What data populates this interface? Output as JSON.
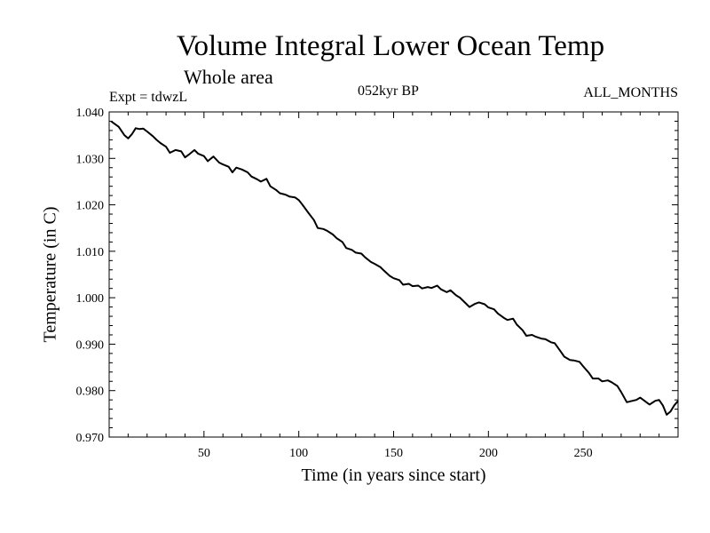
{
  "chart_data": {
    "type": "line",
    "title": "Volume Integral Lower Ocean Temp",
    "subtitle": "Whole area",
    "annotations": {
      "left": "Expt = tdwzL",
      "center": "052kyr BP",
      "right": "ALL_MONTHS"
    },
    "xlabel": "Time (in years since start)",
    "ylabel": "Temperature (in C)",
    "xlim": [
      0,
      300
    ],
    "ylim": [
      0.97,
      1.04
    ],
    "xticks": [
      50,
      100,
      150,
      200,
      250
    ],
    "xtick_labels": [
      "50",
      "100",
      "150",
      "200",
      "250"
    ],
    "yticks": [
      0.97,
      0.98,
      0.99,
      1.0,
      1.01,
      1.02,
      1.03,
      1.04
    ],
    "ytick_labels": [
      "0.970",
      "0.980",
      "0.990",
      "1.000",
      "1.010",
      "1.020",
      "1.030",
      "1.040"
    ],
    "grid": false,
    "line_color": "#000000",
    "series": [
      {
        "x": [
          1,
          5,
          8,
          10,
          12,
          14,
          16,
          18,
          20,
          23,
          25,
          27,
          30,
          32,
          35,
          38,
          40,
          42,
          45,
          47,
          50,
          52,
          55,
          58,
          60,
          63,
          65,
          67,
          70,
          73,
          75,
          78,
          80,
          83,
          85,
          88,
          90,
          93,
          95,
          98,
          100,
          102,
          105,
          108,
          110,
          113,
          115,
          118,
          120,
          123,
          125,
          128,
          130,
          133,
          135,
          138,
          140,
          143,
          145,
          148,
          150,
          153,
          155,
          158,
          160,
          163,
          165,
          168,
          170,
          173,
          175,
          178,
          180,
          183,
          185,
          188,
          190,
          193,
          195,
          198,
          200,
          203,
          205,
          208,
          210,
          213,
          215,
          218,
          220,
          223,
          225,
          228,
          230,
          233,
          235,
          238,
          240,
          243,
          245,
          248,
          250,
          253,
          255,
          258,
          260,
          263,
          265,
          268,
          270,
          273,
          275,
          278,
          280,
          283,
          285,
          288,
          290,
          292,
          294,
          296,
          298,
          300
        ],
        "y": [
          1.038,
          1.0368,
          1.035,
          1.0343,
          1.0352,
          1.0365,
          1.0363,
          1.0364,
          1.0358,
          1.0348,
          1.034,
          1.0333,
          1.0325,
          1.0312,
          1.0318,
          1.0315,
          1.0302,
          1.0308,
          1.0318,
          1.031,
          1.0305,
          1.0294,
          1.0304,
          1.0291,
          1.0287,
          1.0282,
          1.027,
          1.028,
          1.0276,
          1.027,
          1.0261,
          1.0255,
          1.025,
          1.0256,
          1.024,
          1.0232,
          1.0225,
          1.0222,
          1.0218,
          1.0216,
          1.021,
          1.02,
          1.0183,
          1.0167,
          1.015,
          1.0148,
          1.0144,
          1.0136,
          1.0128,
          1.012,
          1.0107,
          1.0103,
          1.0097,
          1.0095,
          1.0087,
          1.0077,
          1.0073,
          1.0066,
          1.0058,
          1.0047,
          1.0042,
          1.0038,
          1.0028,
          1.003,
          1.0025,
          1.0026,
          1.002,
          1.0023,
          1.0021,
          1.0026,
          1.0018,
          1.0012,
          1.0016,
          1.0005,
          1.0,
          0.9988,
          0.998,
          0.9987,
          0.999,
          0.9986,
          0.9979,
          0.9975,
          0.9966,
          0.9957,
          0.9952,
          0.9955,
          0.9942,
          0.993,
          0.9918,
          0.992,
          0.9916,
          0.9912,
          0.9911,
          0.9904,
          0.9902,
          0.9885,
          0.9873,
          0.9866,
          0.9865,
          0.9862,
          0.9852,
          0.9838,
          0.9826,
          0.9826,
          0.982,
          0.9822,
          0.9818,
          0.981,
          0.9797,
          0.9775,
          0.9777,
          0.978,
          0.9785,
          0.9776,
          0.977,
          0.9778,
          0.978,
          0.9768,
          0.9748,
          0.9755,
          0.9768,
          0.9778
        ]
      }
    ]
  }
}
